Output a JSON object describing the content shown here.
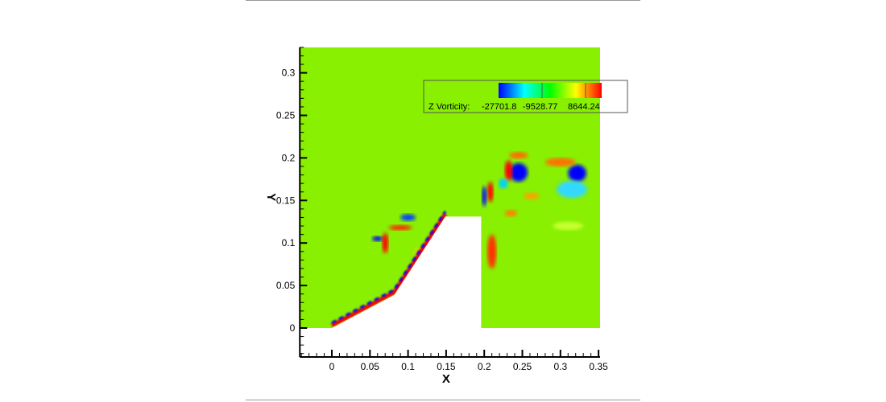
{
  "chart_data": {
    "type": "heatmap",
    "subtype": "filled contour",
    "xlabel": "X",
    "ylabel": "Y",
    "xlim": [
      -0.042,
      0.352
    ],
    "ylim": [
      -0.034,
      0.33
    ],
    "xticks": [
      0,
      0.05,
      0.1,
      0.15,
      0.2,
      0.25,
      0.3,
      0.35
    ],
    "xtick_labels": [
      "0",
      "0.05",
      "0.1",
      "0.15",
      "0.2",
      "0.25",
      "0.3",
      "0.35"
    ],
    "yticks": [
      0,
      0.05,
      0.1,
      0.15,
      0.2,
      0.25,
      0.3
    ],
    "ytick_labels": [
      "0",
      "0.05",
      "0.1",
      "0.15",
      "0.2",
      "0.25",
      "0.3"
    ],
    "grid": false,
    "body_outline": [
      [
        0,
        0
      ],
      [
        0.082,
        0.039
      ],
      [
        0.149,
        0.131
      ],
      [
        0.196,
        0.131
      ],
      [
        0.196,
        0
      ]
    ],
    "legend": {
      "placement": "top-right",
      "variable_label": "Z Vorticity:",
      "level_labels": [
        "-27701.8",
        "-9528.77",
        "8644.24"
      ],
      "colormap": [
        "#0000ff",
        "#00ffff",
        "#00ff00",
        "#ffff00",
        "#ff0000"
      ]
    },
    "background_color": "#88f000"
  }
}
